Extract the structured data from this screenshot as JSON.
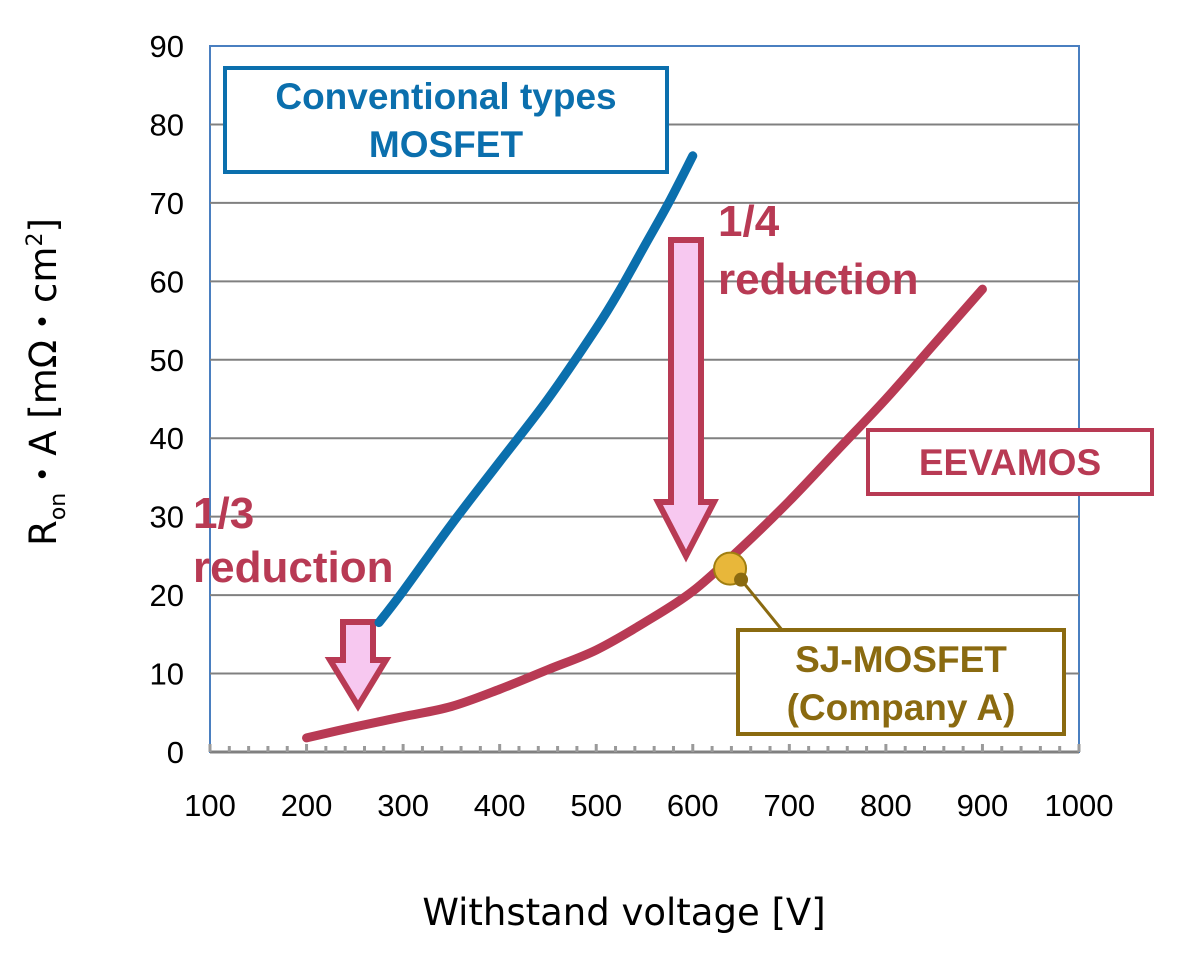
{
  "chart_data": {
    "type": "line",
    "xlabel": "Withstand voltage [V]",
    "ylabel": {
      "prefix": "R",
      "subscript": "on",
      "rest": "・A [mΩ・cm",
      "superscript": "2",
      "suffix": "]"
    },
    "xlim": [
      100,
      1000
    ],
    "ylim": [
      0,
      90
    ],
    "x_ticks": [
      "100",
      "200",
      "300",
      "400",
      "500",
      "600",
      "700",
      "800",
      "900",
      "1000"
    ],
    "y_ticks": [
      "0",
      "10",
      "20",
      "30",
      "40",
      "50",
      "60",
      "70",
      "80",
      "90"
    ],
    "grid": true,
    "series": [
      {
        "name": "Conventional types MOSFET",
        "color": "#0b6fad",
        "points": [
          [
            275,
            16.5
          ],
          [
            300,
            20.5
          ],
          [
            350,
            29
          ],
          [
            400,
            37
          ],
          [
            450,
            45
          ],
          [
            500,
            54
          ],
          [
            525,
            59
          ],
          [
            550,
            64.5
          ],
          [
            575,
            70
          ],
          [
            600,
            76
          ]
        ]
      },
      {
        "name": "EEVAMOS",
        "color": "#b83a54",
        "points": [
          [
            200,
            1.8
          ],
          [
            250,
            3.2
          ],
          [
            300,
            4.5
          ],
          [
            350,
            5.8
          ],
          [
            400,
            8
          ],
          [
            450,
            10.5
          ],
          [
            500,
            13
          ],
          [
            550,
            16.5
          ],
          [
            600,
            20.5
          ],
          [
            650,
            26
          ],
          [
            700,
            32
          ],
          [
            750,
            38.5
          ],
          [
            800,
            45
          ],
          [
            850,
            52
          ],
          [
            900,
            59
          ]
        ]
      }
    ],
    "points": [
      {
        "name": "SJ-MOSFET (Company A)",
        "x": 650,
        "y": 23.5,
        "color": "#e8b73a",
        "edge": "#a07e10"
      }
    ],
    "annotations": {
      "conventional_line1": "Conventional types",
      "conventional_line2": "MOSFET",
      "eevamos": "EEVAMOS",
      "sj_line1": "SJ-MOSFET",
      "sj_line2": "(Company A)",
      "reduction_quarter_num": "1/4",
      "reduction_quarter_word": "reduction",
      "reduction_third_num": "1/3",
      "reduction_third_word": "reduction"
    },
    "colors": {
      "conventional": "#0b6fad",
      "eevamos": "#b83a54",
      "sj": "#8a6a10",
      "arrow_fill": "#f7c8f0",
      "arrow_edge": "#b83a54",
      "plot_border": "#4a7fc0",
      "grid": "#808080"
    }
  }
}
